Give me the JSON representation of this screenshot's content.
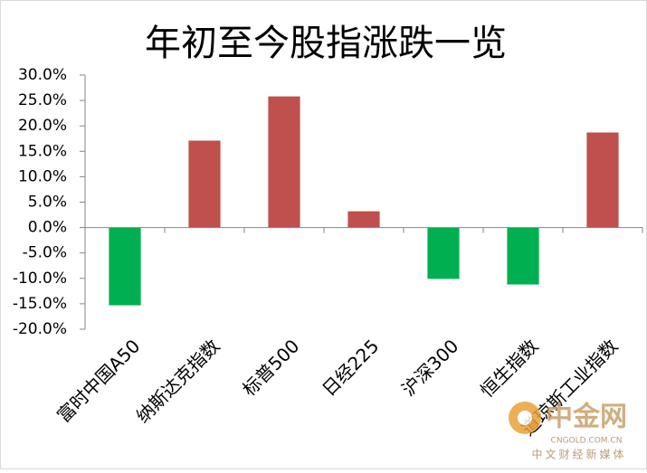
{
  "chart_data": {
    "type": "bar",
    "title": "年初至今股指涨跌一览",
    "categories": [
      "富时中国A50",
      "纳斯达克指数",
      "标普500",
      "日经225",
      "沪深300",
      "恒生指数",
      "道琼斯工业指数"
    ],
    "values": [
      -15.3,
      17.1,
      25.8,
      3.2,
      -10.1,
      -11.2,
      18.7
    ],
    "colors": [
      "#00b050",
      "#c0504d",
      "#c0504d",
      "#c0504d",
      "#00b050",
      "#00b050",
      "#c0504d"
    ],
    "ylim": [
      -20,
      30
    ],
    "yticks": [
      {
        "value": 30,
        "label": "30.0%"
      },
      {
        "value": 25,
        "label": "25.0%"
      },
      {
        "value": 20,
        "label": "20.0%"
      },
      {
        "value": 15,
        "label": "15.0%"
      },
      {
        "value": 10,
        "label": "10.0%"
      },
      {
        "value": 5,
        "label": "5.0%"
      },
      {
        "value": 0,
        "label": "0.0%"
      },
      {
        "value": -5,
        "label": "-5.0%"
      },
      {
        "value": -10,
        "label": "-10.0%"
      },
      {
        "value": -15,
        "label": "-15.0%"
      },
      {
        "value": -20,
        "label": "-20.0%"
      }
    ],
    "grid": false
  },
  "watermark": {
    "name": "中金网",
    "url": "CNGOLD.COM.CN",
    "slogan": "中文财经新媒体"
  }
}
